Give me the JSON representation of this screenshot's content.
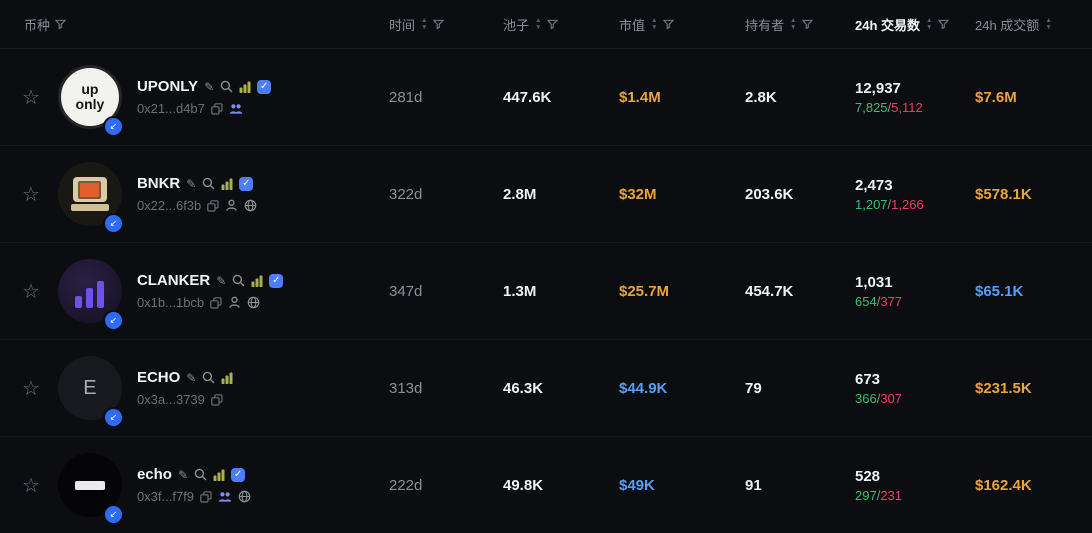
{
  "columns": [
    {
      "label": "币种",
      "sortable": false,
      "filterable": true,
      "active": false
    },
    {
      "label": "时间",
      "sortable": true,
      "filterable": true,
      "active": false
    },
    {
      "label": "池子",
      "sortable": true,
      "filterable": true,
      "active": false
    },
    {
      "label": "市值",
      "sortable": true,
      "filterable": true,
      "active": false
    },
    {
      "label": "持有者",
      "sortable": true,
      "filterable": true,
      "active": false
    },
    {
      "label": "24h 交易数",
      "sortable": true,
      "filterable": true,
      "active": true
    },
    {
      "label": "24h 成交额",
      "sortable": true,
      "filterable": false,
      "active": false
    }
  ],
  "icons": {
    "star": "☆",
    "pencil": "✎",
    "sort_up": "▲",
    "sort_down": "▼",
    "chain_arrow": "↙",
    "check": "✓",
    "slash": "/"
  },
  "colors": {
    "yellow": "#e9a53b",
    "blue": "#54a0f8",
    "green": "#33c36e",
    "red": "#f23d63",
    "verified_badge": "#4d7ef7",
    "chain_badge": "#2e6bf6"
  },
  "rows": [
    {
      "name": "UPONLY",
      "address": "0x21...d4b7",
      "avatar": {
        "type": "uponly",
        "label": "up only"
      },
      "verified": true,
      "links": [
        "group"
      ],
      "time": "281d",
      "pool": "447.6K",
      "mcap": "$1.4M",
      "mcap_color": "yellow",
      "holders": "2.8K",
      "txns": "12,937",
      "buys": "7,825",
      "sells": "5,112",
      "volume": "$7.6M",
      "volume_color": "yellow"
    },
    {
      "name": "BNKR",
      "address": "0x22...6f3b",
      "avatar": {
        "type": "computer"
      },
      "verified": true,
      "links": [
        "person",
        "globe"
      ],
      "time": "322d",
      "pool": "2.8M",
      "mcap": "$32M",
      "mcap_color": "yellow",
      "holders": "203.6K",
      "txns": "2,473",
      "buys": "1,207",
      "sells": "1,266",
      "volume": "$578.1K",
      "volume_color": "yellow"
    },
    {
      "name": "CLANKER",
      "address": "0x1b...1bcb",
      "avatar": {
        "type": "bars"
      },
      "verified": true,
      "links": [
        "person",
        "globe"
      ],
      "time": "347d",
      "pool": "1.3M",
      "mcap": "$25.7M",
      "mcap_color": "yellow",
      "holders": "454.7K",
      "txns": "1,031",
      "buys": "654",
      "sells": "377",
      "volume": "$65.1K",
      "volume_color": "blue"
    },
    {
      "name": "ECHO",
      "address": "0x3a...3739",
      "avatar": {
        "type": "letter",
        "label": "E"
      },
      "verified": false,
      "links": [],
      "time": "313d",
      "pool": "46.3K",
      "mcap": "$44.9K",
      "mcap_color": "blue",
      "holders": "79",
      "txns": "673",
      "buys": "366",
      "sells": "307",
      "volume": "$231.5K",
      "volume_color": "yellow"
    },
    {
      "name": "echo",
      "address": "0x3f...f7f9",
      "avatar": {
        "type": "pill"
      },
      "verified": true,
      "links": [
        "group",
        "globe"
      ],
      "time": "222d",
      "pool": "49.8K",
      "mcap": "$49K",
      "mcap_color": "blue",
      "holders": "91",
      "txns": "528",
      "buys": "297",
      "sells": "231",
      "volume": "$162.4K",
      "volume_color": "yellow"
    }
  ]
}
